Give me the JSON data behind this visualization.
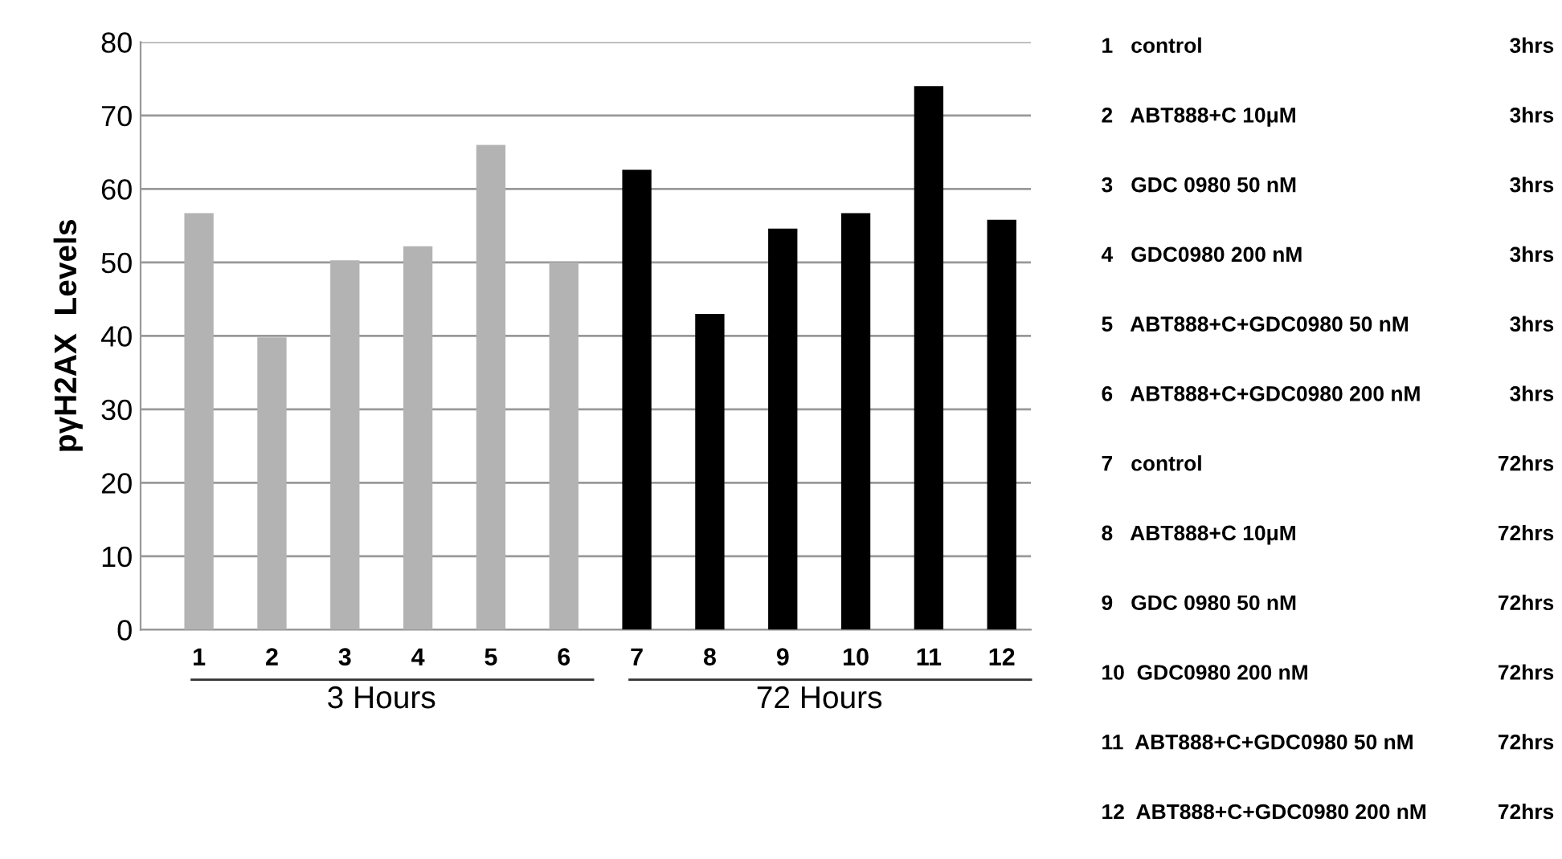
{
  "chart_data": {
    "type": "bar",
    "ylabel": "pγH2AX  Levels",
    "categories": [
      "1",
      "2",
      "3",
      "4",
      "5",
      "6",
      "7",
      "8",
      "9",
      "10",
      "11",
      "12"
    ],
    "values": [
      56.7,
      39.8,
      50.3,
      52.2,
      66,
      50,
      62.6,
      43,
      54.6,
      56.7,
      74,
      55.8
    ],
    "colors": [
      "#b3b3b3",
      "#b3b3b3",
      "#b3b3b3",
      "#b3b3b3",
      "#b3b3b3",
      "#b3b3b3",
      "#000000",
      "#000000",
      "#000000",
      "#000000",
      "#000000",
      "#000000"
    ],
    "ylim": [
      0,
      80
    ],
    "yticks": [
      0,
      10,
      20,
      30,
      40,
      50,
      60,
      70,
      80
    ],
    "grid": "y",
    "annotations": [
      "3 Hours",
      "72 Hours",
      "1   control",
      "3hrs",
      "2   ABT888+C 10μM",
      "3hrs",
      "3   GDC 0980 50 nM",
      "3hrs",
      "4   GDC0980 200 nM",
      "3hrs",
      "5   ABT888+C+GDC0980 50 nM",
      "3hrs",
      "6   ABT888+C+GDC0980 200 nM",
      "3hrs",
      "7   control",
      "72hrs",
      "8   ABT888+C 10μM",
      "72hrs",
      "9   GDC 0980 50 nM",
      "72hrs",
      "10  GDC0980 200 nM",
      "72hrs",
      "11  ABT888+C+GDC0980 50 nM",
      "72hrs",
      "12  ABT888+C+GDC0980 200 nM",
      "72hrs"
    ]
  }
}
